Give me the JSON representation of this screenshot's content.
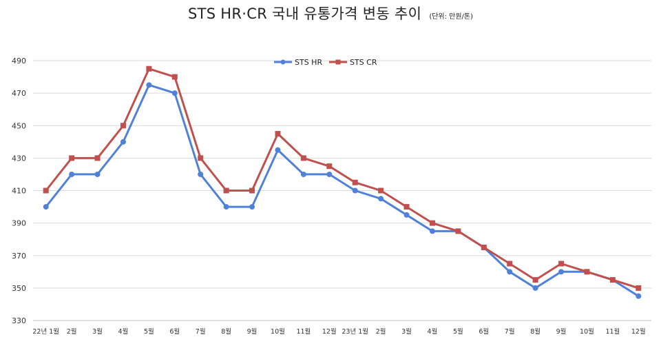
{
  "title": "STS HR·CR  국내 유통가격 변동 추이",
  "unit": "(단위: 만원/톤)",
  "chart_data": {
    "type": "line",
    "title": "STS HR·CR  국내 유통가격 변동 추이",
    "unit": "(단위: 만원/톤)",
    "categories": [
      "22년 1월",
      "2월",
      "3월",
      "4월",
      "5월",
      "6월",
      "7월",
      "8월",
      "9월",
      "10월",
      "11월",
      "12월",
      "23년 1월",
      "2월",
      "3월",
      "4월",
      "5월",
      "6월",
      "7월",
      "8월",
      "9월",
      "10월",
      "11월",
      "12월"
    ],
    "series": [
      {
        "name": "STS HR",
        "color": "#4f81d8",
        "marker": "circle",
        "values": [
          400,
          420,
          420,
          440,
          475,
          470,
          420,
          400,
          400,
          435,
          420,
          420,
          410,
          405,
          395,
          385,
          385,
          375,
          360,
          350,
          360,
          360,
          355,
          345
        ]
      },
      {
        "name": "STS CR",
        "color": "#c0504d",
        "marker": "square",
        "values": [
          410,
          430,
          430,
          450,
          485,
          480,
          430,
          410,
          410,
          445,
          430,
          425,
          415,
          410,
          400,
          390,
          385,
          375,
          365,
          355,
          365,
          360,
          355,
          350
        ]
      }
    ],
    "yticks": [
      330,
      350,
      370,
      390,
      410,
      430,
      450,
      470,
      490
    ],
    "ylim": [
      330,
      490
    ],
    "grid": "horizontal",
    "legend": "top-center"
  }
}
